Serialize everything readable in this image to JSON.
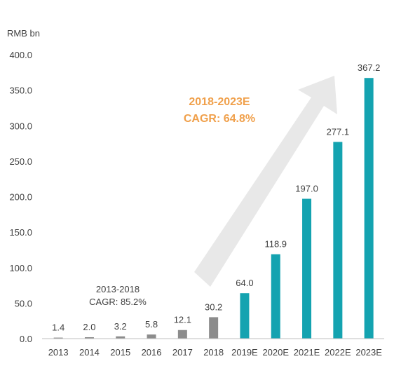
{
  "chart_data": {
    "type": "bar",
    "unit_label": "RMB bn",
    "categories": [
      "2013",
      "2014",
      "2015",
      "2016",
      "2017",
      "2018",
      "2019E",
      "2020E",
      "2021E",
      "2022E",
      "2023E"
    ],
    "values": [
      1.4,
      2.0,
      3.2,
      5.8,
      12.1,
      30.2,
      64.0,
      118.9,
      197.0,
      277.1,
      367.2
    ],
    "value_labels": [
      "1.4",
      "2.0",
      "3.2",
      "5.8",
      "12.1",
      "30.2",
      "64.0",
      "118.9",
      "197.0",
      "277.1",
      "367.2"
    ],
    "bar_colors": [
      "#8C8C8C",
      "#8C8C8C",
      "#8C8C8C",
      "#8C8C8C",
      "#8C8C8C",
      "#8C8C8C",
      "#14A3B0",
      "#14A3B0",
      "#14A3B0",
      "#14A3B0",
      "#14A3B0"
    ],
    "ylim": [
      0,
      400
    ],
    "yticks": [
      "0.0",
      "50.0",
      "100.0",
      "150.0",
      "200.0",
      "250.0",
      "300.0",
      "350.0",
      "400.0"
    ],
    "ytick_values": [
      0,
      50,
      100,
      150,
      200,
      250,
      300,
      350,
      400
    ],
    "grid": false,
    "annotations": {
      "forecast_title": "2018-2023E",
      "forecast_cagr": "CAGR: 64.8%",
      "forecast_color": "#F0A04B",
      "history_title": "2013-2018",
      "history_cagr": "CAGR: 85.2%",
      "arrow_color": "#E8E8E8"
    }
  }
}
